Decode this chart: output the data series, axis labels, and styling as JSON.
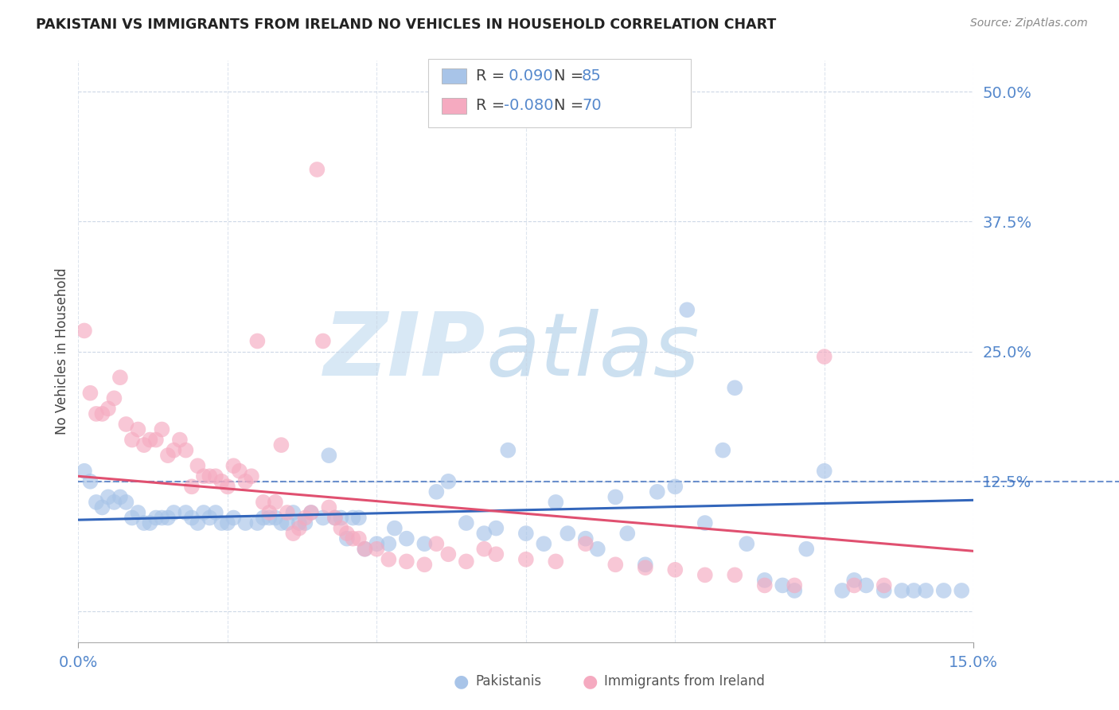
{
  "title": "PAKISTANI VS IMMIGRANTS FROM IRELAND NO VEHICLES IN HOUSEHOLD CORRELATION CHART",
  "source": "Source: ZipAtlas.com",
  "ylabel": "No Vehicles in Household",
  "xlabel_blue": "Pakistanis",
  "xlabel_pink": "Immigrants from Ireland",
  "x_min": 0.0,
  "x_max": 0.15,
  "y_min": -0.03,
  "y_max": 0.53,
  "blue_color": "#a8c4e8",
  "blue_line_color": "#3366bb",
  "pink_color": "#f5aac0",
  "pink_line_color": "#e05070",
  "grid_color": "#c8d4e4",
  "axis_label_color": "#5588cc",
  "r_blue": 0.09,
  "n_blue": 85,
  "r_pink": -0.08,
  "n_pink": 70,
  "blue_trend": [
    0.088,
    0.107
  ],
  "pink_trend": [
    0.13,
    0.058
  ],
  "blue_scatter_x": [
    0.001,
    0.002,
    0.003,
    0.004,
    0.005,
    0.006,
    0.007,
    0.008,
    0.009,
    0.01,
    0.011,
    0.012,
    0.013,
    0.014,
    0.015,
    0.016,
    0.018,
    0.019,
    0.02,
    0.021,
    0.022,
    0.023,
    0.024,
    0.025,
    0.026,
    0.028,
    0.03,
    0.031,
    0.032,
    0.033,
    0.034,
    0.035,
    0.036,
    0.037,
    0.038,
    0.039,
    0.041,
    0.042,
    0.043,
    0.044,
    0.045,
    0.046,
    0.047,
    0.048,
    0.05,
    0.052,
    0.053,
    0.055,
    0.058,
    0.06,
    0.062,
    0.065,
    0.068,
    0.07,
    0.072,
    0.075,
    0.078,
    0.08,
    0.082,
    0.085,
    0.087,
    0.09,
    0.092,
    0.095,
    0.097,
    0.1,
    0.102,
    0.105,
    0.108,
    0.11,
    0.112,
    0.115,
    0.118,
    0.12,
    0.122,
    0.125,
    0.128,
    0.13,
    0.132,
    0.135,
    0.138,
    0.14,
    0.142,
    0.145,
    0.148
  ],
  "blue_scatter_y": [
    0.135,
    0.125,
    0.105,
    0.1,
    0.11,
    0.105,
    0.11,
    0.105,
    0.09,
    0.095,
    0.085,
    0.085,
    0.09,
    0.09,
    0.09,
    0.095,
    0.095,
    0.09,
    0.085,
    0.095,
    0.09,
    0.095,
    0.085,
    0.085,
    0.09,
    0.085,
    0.085,
    0.09,
    0.09,
    0.09,
    0.085,
    0.085,
    0.095,
    0.085,
    0.085,
    0.095,
    0.09,
    0.15,
    0.09,
    0.09,
    0.07,
    0.09,
    0.09,
    0.06,
    0.065,
    0.065,
    0.08,
    0.07,
    0.065,
    0.115,
    0.125,
    0.085,
    0.075,
    0.08,
    0.155,
    0.075,
    0.065,
    0.105,
    0.075,
    0.07,
    0.06,
    0.11,
    0.075,
    0.045,
    0.115,
    0.12,
    0.29,
    0.085,
    0.155,
    0.215,
    0.065,
    0.03,
    0.025,
    0.02,
    0.06,
    0.135,
    0.02,
    0.03,
    0.025,
    0.02,
    0.02,
    0.02,
    0.02,
    0.02,
    0.02
  ],
  "pink_scatter_x": [
    0.001,
    0.002,
    0.003,
    0.004,
    0.005,
    0.006,
    0.007,
    0.008,
    0.009,
    0.01,
    0.011,
    0.012,
    0.013,
    0.014,
    0.015,
    0.016,
    0.017,
    0.018,
    0.019,
    0.02,
    0.021,
    0.022,
    0.023,
    0.024,
    0.025,
    0.026,
    0.027,
    0.028,
    0.029,
    0.03,
    0.031,
    0.032,
    0.033,
    0.034,
    0.035,
    0.036,
    0.037,
    0.038,
    0.039,
    0.04,
    0.041,
    0.042,
    0.043,
    0.044,
    0.045,
    0.046,
    0.047,
    0.048,
    0.05,
    0.052,
    0.055,
    0.058,
    0.06,
    0.062,
    0.065,
    0.068,
    0.07,
    0.075,
    0.08,
    0.085,
    0.09,
    0.095,
    0.1,
    0.105,
    0.11,
    0.115,
    0.12,
    0.125,
    0.13,
    0.135
  ],
  "pink_scatter_y": [
    0.27,
    0.21,
    0.19,
    0.19,
    0.195,
    0.205,
    0.225,
    0.18,
    0.165,
    0.175,
    0.16,
    0.165,
    0.165,
    0.175,
    0.15,
    0.155,
    0.165,
    0.155,
    0.12,
    0.14,
    0.13,
    0.13,
    0.13,
    0.125,
    0.12,
    0.14,
    0.135,
    0.125,
    0.13,
    0.26,
    0.105,
    0.095,
    0.105,
    0.16,
    0.095,
    0.075,
    0.08,
    0.09,
    0.095,
    0.425,
    0.26,
    0.1,
    0.09,
    0.08,
    0.075,
    0.07,
    0.07,
    0.06,
    0.06,
    0.05,
    0.048,
    0.045,
    0.065,
    0.055,
    0.048,
    0.06,
    0.055,
    0.05,
    0.048,
    0.065,
    0.045,
    0.042,
    0.04,
    0.035,
    0.035,
    0.025,
    0.025,
    0.245,
    0.025,
    0.025
  ]
}
